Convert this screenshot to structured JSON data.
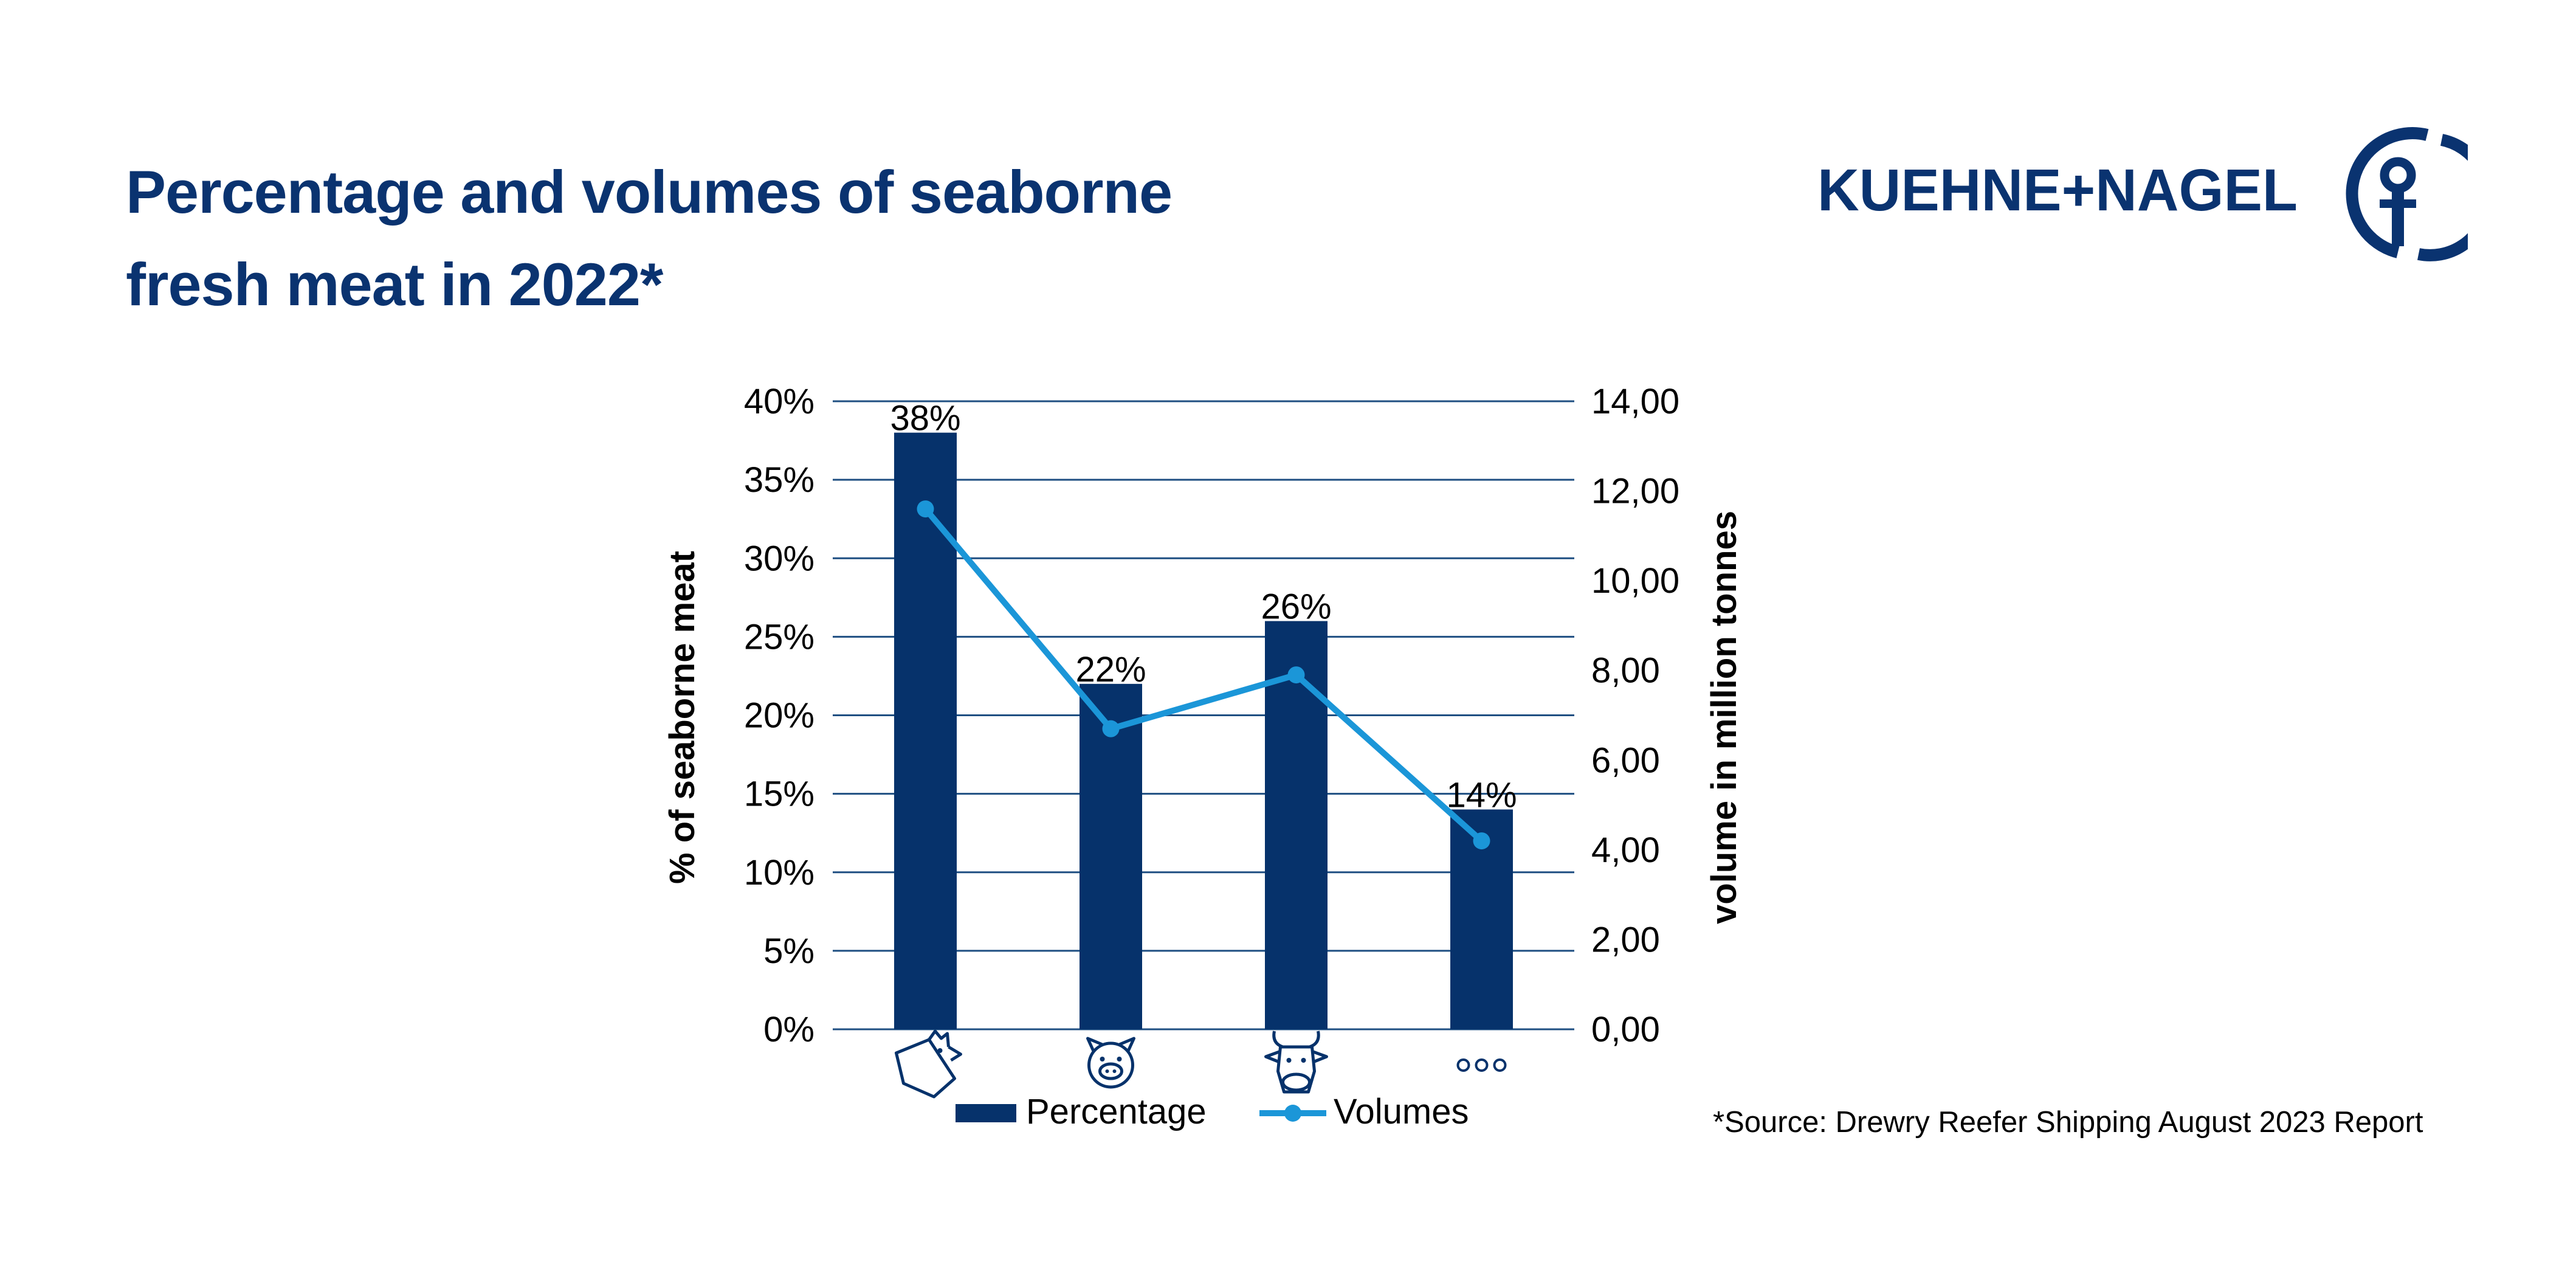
{
  "title": {
    "line1": "Percentage and volumes of seaborne",
    "line2": "fresh meat in 2022*"
  },
  "logo": {
    "text": "KUEHNE+NAGEL",
    "icon": "anchor-ring-icon"
  },
  "source": "*Source: Drewry Reefer Shipping August 2023 Report",
  "colors": {
    "brand": "#0a3370",
    "bars": "#06326b",
    "line": "#1b96d8",
    "grid": "#1f4f82"
  },
  "chart_data": {
    "type": "bar",
    "categories": [
      "chicken-icon",
      "pig-icon",
      "cow-icon",
      "more-icon"
    ],
    "ylabel": "% of seaborne meat",
    "y2label": "volume in million tonnes",
    "ylim": [
      0,
      40
    ],
    "y2lim": [
      0,
      14
    ],
    "yticks": [
      "0%",
      "5%",
      "10%",
      "15%",
      "20%",
      "25%",
      "30%",
      "35%",
      "40%"
    ],
    "y2ticks": [
      "0,00",
      "2,00",
      "4,00",
      "6,00",
      "8,00",
      "10,00",
      "12,00",
      "14,00"
    ],
    "grid": true,
    "legend_position": "bottom",
    "series": [
      {
        "name": "Percentage",
        "type": "bar",
        "axis": "left",
        "values": [
          38,
          22,
          26,
          14
        ],
        "labels": [
          "38%",
          "22%",
          "26%",
          "14%"
        ]
      },
      {
        "name": "Volumes",
        "type": "line",
        "axis": "right",
        "values": [
          11.6,
          6.7,
          7.9,
          4.2
        ]
      }
    ]
  }
}
